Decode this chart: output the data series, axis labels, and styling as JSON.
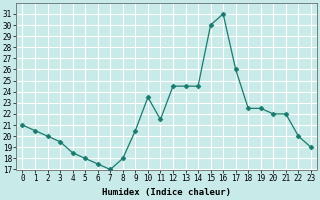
{
  "x": [
    0,
    1,
    2,
    3,
    4,
    5,
    6,
    7,
    8,
    9,
    10,
    11,
    12,
    13,
    14,
    15,
    16,
    17,
    18,
    19,
    20,
    21,
    22,
    23
  ],
  "y": [
    21.0,
    20.5,
    20.0,
    19.5,
    18.5,
    18.0,
    17.5,
    17.0,
    18.0,
    20.5,
    23.5,
    21.5,
    24.5,
    24.5,
    24.5,
    30.0,
    31.0,
    26.0,
    22.5,
    22.5,
    22.0,
    22.0,
    20.0,
    19.0
  ],
  "line_color": "#1a7a6e",
  "marker": "D",
  "marker_size": 2.5,
  "bg_color": "#c8eae8",
  "grid_color": "#ffffff",
  "xlabel": "Humidex (Indice chaleur)",
  "ylim": [
    17,
    32
  ],
  "xlim": [
    -0.5,
    23.5
  ],
  "yticks": [
    17,
    18,
    19,
    20,
    21,
    22,
    23,
    24,
    25,
    26,
    27,
    28,
    29,
    30,
    31
  ],
  "xticks": [
    0,
    1,
    2,
    3,
    4,
    5,
    6,
    7,
    8,
    9,
    10,
    11,
    12,
    13,
    14,
    15,
    16,
    17,
    18,
    19,
    20,
    21,
    22,
    23
  ],
  "label_fontsize": 6.5,
  "tick_fontsize": 5.5
}
